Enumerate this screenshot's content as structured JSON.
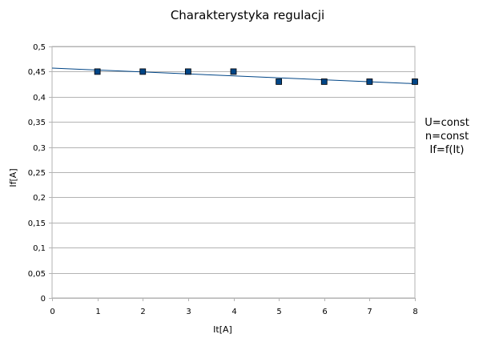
{
  "chart_data": {
    "type": "scatter",
    "title": "Charakterystyka regulacji",
    "xlabel": "It[A]",
    "ylabel": "If[A]",
    "xlim": [
      0,
      8
    ],
    "ylim": [
      0,
      0.5
    ],
    "x_ticks": [
      "0",
      "1",
      "2",
      "3",
      "4",
      "5",
      "6",
      "7",
      "8"
    ],
    "y_ticks": [
      "0",
      "0,05",
      "0,1",
      "0,15",
      "0,2",
      "0,25",
      "0,3",
      "0,35",
      "0,4",
      "0,45",
      "0,5"
    ],
    "grid": "horizontal",
    "series": [
      {
        "x": [
          1,
          2,
          3,
          4,
          5,
          6,
          7,
          8
        ],
        "y": [
          0.45,
          0.45,
          0.45,
          0.45,
          0.43,
          0.43,
          0.43,
          0.43
        ],
        "color": "#004586",
        "marker": "square"
      }
    ],
    "trendline": {
      "type": "linear",
      "from": [
        0,
        0.457
      ],
      "to": [
        8,
        0.426
      ],
      "color": "#004586"
    },
    "annotation": [
      "U=const",
      "n=const",
      "If=f(It)"
    ],
    "colors": {
      "grid": "#b3b3b3",
      "axis": "#b3b3b3"
    }
  }
}
